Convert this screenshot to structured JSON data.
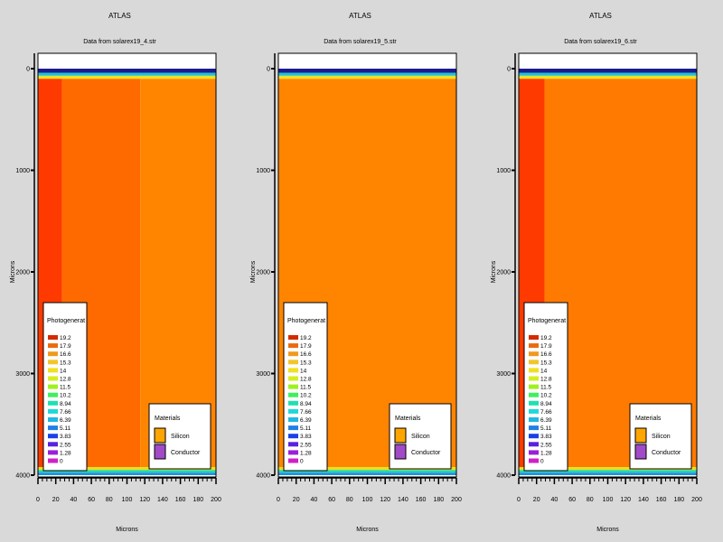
{
  "legend_common": {
    "photogen_title": "Photogenerat",
    "photogen_levels": [
      "19.2",
      "17.9",
      "16.6",
      "15.3",
      "14",
      "12.8",
      "11.5",
      "10.2",
      "8.94",
      "7.66",
      "6.39",
      "5.11",
      "3.83",
      "2.55",
      "1.28",
      "0"
    ],
    "photogen_colors": [
      "#d42a00",
      "#ea6a10",
      "#f09a20",
      "#f2c62a",
      "#f0e020",
      "#d6ee20",
      "#a0f020",
      "#40ee60",
      "#20e0b0",
      "#20d8d8",
      "#20b8e0",
      "#2080e8",
      "#1a40e8",
      "#5a20e0",
      "#9a20d8",
      "#d020c8"
    ],
    "materials_title": "Materials",
    "materials": [
      {
        "name": "Silicon",
        "color": "#ffa500"
      },
      {
        "name": "Conductor",
        "color": "#a24bc8"
      }
    ]
  },
  "chart_data": [
    {
      "type": "heatmap",
      "title": "ATLAS",
      "subtitle": "Data from solarex19_4.str",
      "xlabel": "Microns",
      "ylabel": "Microns",
      "xlim": [
        0,
        200
      ],
      "ylim": [
        0,
        4000
      ],
      "y_inverted": true,
      "x_ticks": [
        "0",
        "20",
        "40",
        "60",
        "80",
        "100",
        "120",
        "140",
        "160",
        "180",
        "200"
      ],
      "y_ticks": [
        "0",
        "1000",
        "2000",
        "3000",
        "4000"
      ],
      "regions": [
        {
          "x0": 0,
          "x1": 200,
          "y0": 0,
          "y1": 40,
          "color": "#1a1a8c"
        },
        {
          "x0": 0,
          "x1": 200,
          "y0": 40,
          "y1": 70,
          "color": "#20c0d8"
        },
        {
          "x0": 0,
          "x1": 200,
          "y0": 70,
          "y1": 100,
          "color": "#f0e020"
        },
        {
          "x0": 0,
          "x1": 27,
          "y0": 100,
          "y1": 3920,
          "color": "#ff3a00"
        },
        {
          "x0": 27,
          "x1": 115,
          "y0": 100,
          "y1": 3920,
          "color": "#ff6a00"
        },
        {
          "x0": 115,
          "x1": 200,
          "y0": 100,
          "y1": 3920,
          "color": "#ff8500"
        },
        {
          "x0": 0,
          "x1": 200,
          "y0": 3920,
          "y1": 3950,
          "color": "#e8e020"
        },
        {
          "x0": 0,
          "x1": 200,
          "y0": 3950,
          "y1": 3975,
          "color": "#20d8b0"
        },
        {
          "x0": 0,
          "x1": 200,
          "y0": 3975,
          "y1": 4000,
          "color": "#2090e0"
        }
      ]
    },
    {
      "type": "heatmap",
      "title": "ATLAS",
      "subtitle": "Data from solarex19_5.str",
      "xlabel": "Microns",
      "ylabel": "Microns",
      "xlim": [
        0,
        200
      ],
      "ylim": [
        0,
        4000
      ],
      "y_inverted": true,
      "x_ticks": [
        "0",
        "20",
        "40",
        "60",
        "80",
        "100",
        "120",
        "140",
        "160",
        "180",
        "200"
      ],
      "y_ticks": [
        "0",
        "1000",
        "2000",
        "3000",
        "4000"
      ],
      "regions": [
        {
          "x0": 0,
          "x1": 200,
          "y0": 0,
          "y1": 40,
          "color": "#1a1a8c"
        },
        {
          "x0": 0,
          "x1": 200,
          "y0": 40,
          "y1": 70,
          "color": "#20c0d8"
        },
        {
          "x0": 0,
          "x1": 200,
          "y0": 70,
          "y1": 100,
          "color": "#f0e020"
        },
        {
          "x0": 0,
          "x1": 200,
          "y0": 100,
          "y1": 3920,
          "color": "#ff8500"
        },
        {
          "x0": 0,
          "x1": 200,
          "y0": 3920,
          "y1": 3950,
          "color": "#e8e020"
        },
        {
          "x0": 0,
          "x1": 200,
          "y0": 3950,
          "y1": 3975,
          "color": "#20d8b0"
        },
        {
          "x0": 0,
          "x1": 200,
          "y0": 3975,
          "y1": 4000,
          "color": "#2090e0"
        }
      ]
    },
    {
      "type": "heatmap",
      "title": "ATLAS",
      "subtitle": "Data from solarex19_6.str",
      "xlabel": "Microns",
      "ylabel": "Microns",
      "xlim": [
        0,
        200
      ],
      "ylim": [
        0,
        4000
      ],
      "y_inverted": true,
      "x_ticks": [
        "0",
        "20",
        "40",
        "60",
        "80",
        "100",
        "120",
        "140",
        "160",
        "180",
        "200"
      ],
      "y_ticks": [
        "0",
        "1000",
        "2000",
        "3000",
        "4000"
      ],
      "regions": [
        {
          "x0": 0,
          "x1": 200,
          "y0": 0,
          "y1": 40,
          "color": "#1a1a8c"
        },
        {
          "x0": 0,
          "x1": 200,
          "y0": 40,
          "y1": 70,
          "color": "#20c0d8"
        },
        {
          "x0": 0,
          "x1": 200,
          "y0": 70,
          "y1": 100,
          "color": "#f0e020"
        },
        {
          "x0": 0,
          "x1": 29,
          "y0": 100,
          "y1": 3920,
          "color": "#ff3a00"
        },
        {
          "x0": 29,
          "x1": 200,
          "y0": 100,
          "y1": 3920,
          "color": "#ff7a00"
        },
        {
          "x0": 0,
          "x1": 200,
          "y0": 3920,
          "y1": 3950,
          "color": "#e8e020"
        },
        {
          "x0": 0,
          "x1": 200,
          "y0": 3950,
          "y1": 3975,
          "color": "#20d8b0"
        },
        {
          "x0": 0,
          "x1": 200,
          "y0": 3975,
          "y1": 4000,
          "color": "#2090e0"
        }
      ]
    }
  ]
}
